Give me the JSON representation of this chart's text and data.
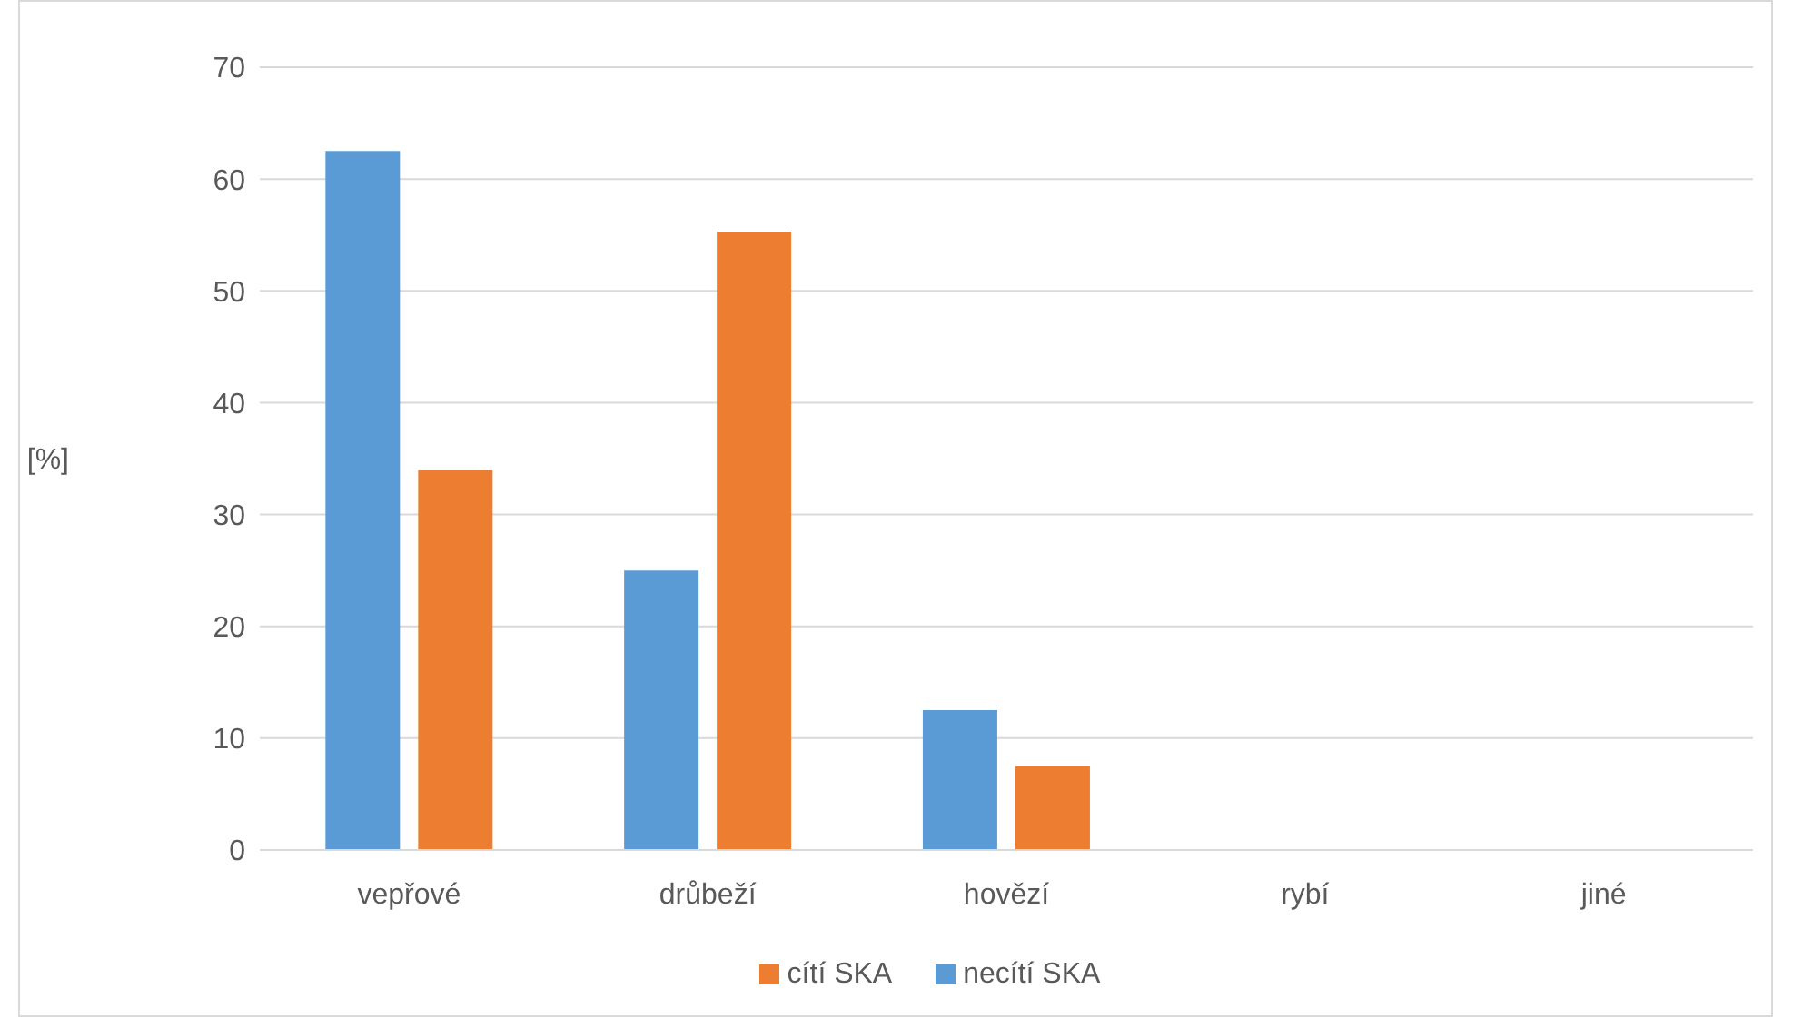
{
  "chart_data": {
    "type": "bar",
    "ylabel": "[%]",
    "categories": [
      "vepřové",
      "drůbeží",
      "hovězí",
      "rybí",
      "jiné"
    ],
    "series": [
      {
        "name": "necítí SKA",
        "color": "#5b9bd5",
        "values": [
          62.5,
          25,
          12.5,
          0,
          0
        ]
      },
      {
        "name": "cítí SKA",
        "color": "#ed7d31",
        "values": [
          34,
          55.3,
          7.5,
          0,
          0
        ]
      }
    ],
    "ylim": [
      0,
      70
    ],
    "yticks": [
      0,
      10,
      20,
      30,
      40,
      50,
      60,
      70
    ],
    "grid": "y",
    "legend": "bottom"
  }
}
